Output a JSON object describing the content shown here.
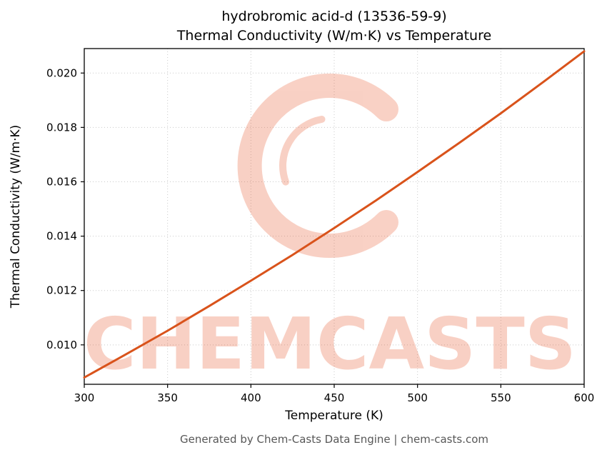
{
  "chart_data": {
    "type": "line",
    "title_line1": "hydrobromic acid-d (13536-59-9)",
    "title_line2": "Thermal Conductivity (W/m·K) vs Temperature",
    "xlabel": "Temperature (K)",
    "ylabel": "Thermal Conductivity (W/m·K)",
    "x": [
      300,
      325,
      350,
      375,
      400,
      425,
      450,
      475,
      500,
      525,
      550,
      575,
      600
    ],
    "y": [
      0.0088,
      0.00965,
      0.01052,
      0.01143,
      0.01236,
      0.01331,
      0.0143,
      0.01531,
      0.01636,
      0.01743,
      0.01852,
      0.01965,
      0.0208
    ],
    "xlim": [
      300,
      600
    ],
    "ylim": [
      0.00855,
      0.0209
    ],
    "xticks": [
      300,
      350,
      400,
      450,
      500,
      550,
      600
    ],
    "xtick_labels": [
      "300",
      "350",
      "400",
      "450",
      "500",
      "550",
      "600"
    ],
    "yticks": [
      0.01,
      0.012,
      0.014,
      0.016,
      0.018,
      0.02
    ],
    "ytick_labels": [
      "0.010",
      "0.012",
      "0.014",
      "0.016",
      "0.018",
      "0.020"
    ],
    "grid": true,
    "grid_style": "dotted",
    "line_color": "#d9531b",
    "line_width": 3
  },
  "watermark": {
    "text": "CHEMCASTS",
    "logo": "chemcasts-c-swirl-icon",
    "color": "#e8552a",
    "opacity": 0.27
  },
  "footer": {
    "text": "Generated by Chem-Casts Data Engine | chem-casts.com"
  }
}
